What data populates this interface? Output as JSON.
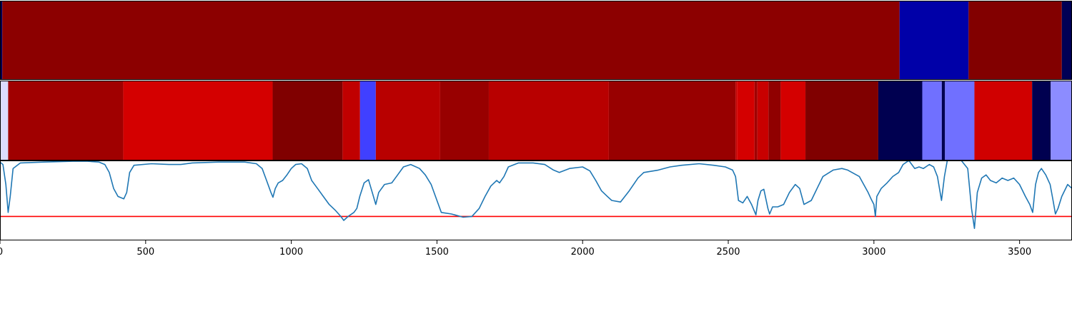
{
  "chart_data": {
    "type": "heatmap",
    "x_range": [
      0,
      3680
    ],
    "x_ticks": [
      0,
      500,
      1000,
      1500,
      2000,
      2500,
      3000,
      3500
    ],
    "x_tick_labels": [
      "0",
      "500",
      "1000",
      "1500",
      "2000",
      "2500",
      "3000",
      "3500"
    ],
    "colormap": "seismic",
    "grid": false,
    "segment_bands": [
      {
        "segments": [
          {
            "start": 0,
            "end": 8,
            "color": "#000055"
          },
          {
            "start": 8,
            "end": 3088,
            "color": "#8c0000"
          },
          {
            "start": 3088,
            "end": 3325,
            "color": "#0000a8"
          },
          {
            "start": 3325,
            "end": 3645,
            "color": "#820000"
          },
          {
            "start": 3645,
            "end": 3680,
            "color": "#000055"
          }
        ]
      },
      {
        "segments": [
          {
            "start": 0,
            "end": 28,
            "color": "#dcdcff"
          },
          {
            "start": 28,
            "end": 423,
            "color": "#a00000"
          },
          {
            "start": 423,
            "end": 936,
            "color": "#d40000"
          },
          {
            "start": 936,
            "end": 1176,
            "color": "#800000"
          },
          {
            "start": 1176,
            "end": 1236,
            "color": "#c00000"
          },
          {
            "start": 1236,
            "end": 1290,
            "color": "#4040ff"
          },
          {
            "start": 1290,
            "end": 1511,
            "color": "#b80000"
          },
          {
            "start": 1511,
            "end": 1678,
            "color": "#980000"
          },
          {
            "start": 1678,
            "end": 2090,
            "color": "#b80000"
          },
          {
            "start": 2090,
            "end": 2525,
            "color": "#980000"
          },
          {
            "start": 2525,
            "end": 2530,
            "color": "#c00000"
          },
          {
            "start": 2530,
            "end": 2590,
            "color": "#d40000"
          },
          {
            "start": 2590,
            "end": 2600,
            "color": "#a00000"
          },
          {
            "start": 2600,
            "end": 2638,
            "color": "#c80000"
          },
          {
            "start": 2638,
            "end": 2680,
            "color": "#900000"
          },
          {
            "start": 2680,
            "end": 2765,
            "color": "#d40000"
          },
          {
            "start": 2765,
            "end": 3015,
            "color": "#800000"
          },
          {
            "start": 3015,
            "end": 3166,
            "color": "#000050"
          },
          {
            "start": 3166,
            "end": 3233,
            "color": "#7070ff"
          },
          {
            "start": 3233,
            "end": 3244,
            "color": "#000050"
          },
          {
            "start": 3244,
            "end": 3345,
            "color": "#7070ff"
          },
          {
            "start": 3345,
            "end": 3543,
            "color": "#d00000"
          },
          {
            "start": 3543,
            "end": 3607,
            "color": "#000050"
          },
          {
            "start": 3607,
            "end": 3680,
            "color": "#8c8cff"
          }
        ]
      }
    ],
    "line": {
      "color": "#1f77b4",
      "ylim": [
        0,
        1
      ],
      "threshold": {
        "value": 0.3,
        "color": "#ff0000"
      },
      "points": [
        [
          0,
          0.98
        ],
        [
          10,
          0.95
        ],
        [
          20,
          0.7
        ],
        [
          28,
          0.35
        ],
        [
          35,
          0.55
        ],
        [
          45,
          0.9
        ],
        [
          70,
          0.97
        ],
        [
          150,
          0.98
        ],
        [
          250,
          0.99
        ],
        [
          300,
          0.99
        ],
        [
          340,
          0.98
        ],
        [
          360,
          0.95
        ],
        [
          375,
          0.85
        ],
        [
          390,
          0.65
        ],
        [
          405,
          0.55
        ],
        [
          425,
          0.52
        ],
        [
          435,
          0.6
        ],
        [
          445,
          0.85
        ],
        [
          460,
          0.94
        ],
        [
          520,
          0.96
        ],
        [
          580,
          0.95
        ],
        [
          620,
          0.95
        ],
        [
          660,
          0.97
        ],
        [
          750,
          0.98
        ],
        [
          840,
          0.98
        ],
        [
          880,
          0.96
        ],
        [
          900,
          0.9
        ],
        [
          915,
          0.75
        ],
        [
          930,
          0.6
        ],
        [
          937,
          0.54
        ],
        [
          945,
          0.65
        ],
        [
          955,
          0.72
        ],
        [
          970,
          0.75
        ],
        [
          985,
          0.82
        ],
        [
          1000,
          0.9
        ],
        [
          1015,
          0.95
        ],
        [
          1035,
          0.96
        ],
        [
          1055,
          0.9
        ],
        [
          1070,
          0.75
        ],
        [
          1090,
          0.65
        ],
        [
          1110,
          0.55
        ],
        [
          1130,
          0.45
        ],
        [
          1150,
          0.38
        ],
        [
          1170,
          0.3
        ],
        [
          1180,
          0.25
        ],
        [
          1195,
          0.3
        ],
        [
          1215,
          0.35
        ],
        [
          1225,
          0.4
        ],
        [
          1235,
          0.55
        ],
        [
          1250,
          0.72
        ],
        [
          1265,
          0.76
        ],
        [
          1278,
          0.6
        ],
        [
          1290,
          0.45
        ],
        [
          1300,
          0.6
        ],
        [
          1320,
          0.7
        ],
        [
          1345,
          0.72
        ],
        [
          1365,
          0.82
        ],
        [
          1385,
          0.92
        ],
        [
          1410,
          0.95
        ],
        [
          1440,
          0.9
        ],
        [
          1460,
          0.82
        ],
        [
          1480,
          0.7
        ],
        [
          1500,
          0.5
        ],
        [
          1515,
          0.35
        ],
        [
          1550,
          0.33
        ],
        [
          1590,
          0.29
        ],
        [
          1620,
          0.3
        ],
        [
          1645,
          0.4
        ],
        [
          1665,
          0.55
        ],
        [
          1685,
          0.68
        ],
        [
          1705,
          0.75
        ],
        [
          1715,
          0.72
        ],
        [
          1730,
          0.8
        ],
        [
          1745,
          0.92
        ],
        [
          1780,
          0.97
        ],
        [
          1830,
          0.97
        ],
        [
          1870,
          0.95
        ],
        [
          1900,
          0.88
        ],
        [
          1920,
          0.85
        ],
        [
          1955,
          0.9
        ],
        [
          2000,
          0.92
        ],
        [
          2025,
          0.87
        ],
        [
          2045,
          0.75
        ],
        [
          2065,
          0.62
        ],
        [
          2085,
          0.55
        ],
        [
          2100,
          0.5
        ],
        [
          2130,
          0.48
        ],
        [
          2160,
          0.62
        ],
        [
          2190,
          0.78
        ],
        [
          2210,
          0.85
        ],
        [
          2260,
          0.88
        ],
        [
          2300,
          0.92
        ],
        [
          2340,
          0.94
        ],
        [
          2400,
          0.96
        ],
        [
          2450,
          0.94
        ],
        [
          2490,
          0.92
        ],
        [
          2515,
          0.88
        ],
        [
          2525,
          0.8
        ],
        [
          2535,
          0.5
        ],
        [
          2550,
          0.47
        ],
        [
          2565,
          0.55
        ],
        [
          2580,
          0.45
        ],
        [
          2595,
          0.32
        ],
        [
          2602,
          0.5
        ],
        [
          2612,
          0.62
        ],
        [
          2622,
          0.64
        ],
        [
          2636,
          0.4
        ],
        [
          2642,
          0.33
        ],
        [
          2652,
          0.42
        ],
        [
          2670,
          0.42
        ],
        [
          2690,
          0.45
        ],
        [
          2710,
          0.6
        ],
        [
          2730,
          0.7
        ],
        [
          2745,
          0.65
        ],
        [
          2760,
          0.45
        ],
        [
          2785,
          0.5
        ],
        [
          2805,
          0.65
        ],
        [
          2825,
          0.8
        ],
        [
          2860,
          0.88
        ],
        [
          2890,
          0.9
        ],
        [
          2910,
          0.88
        ],
        [
          2950,
          0.8
        ],
        [
          2980,
          0.6
        ],
        [
          2990,
          0.52
        ],
        [
          3000,
          0.45
        ],
        [
          3005,
          0.3
        ],
        [
          3010,
          0.55
        ],
        [
          3025,
          0.65
        ],
        [
          3045,
          0.72
        ],
        [
          3065,
          0.8
        ],
        [
          3085,
          0.85
        ],
        [
          3100,
          0.95
        ],
        [
          3120,
          1.0
        ],
        [
          3140,
          0.9
        ],
        [
          3155,
          0.92
        ],
        [
          3170,
          0.9
        ],
        [
          3190,
          0.95
        ],
        [
          3205,
          0.92
        ],
        [
          3218,
          0.8
        ],
        [
          3232,
          0.5
        ],
        [
          3242,
          0.8
        ],
        [
          3252,
          1.0
        ],
        [
          3300,
          1.0
        ],
        [
          3322,
          0.9
        ],
        [
          3335,
          0.4
        ],
        [
          3345,
          0.15
        ],
        [
          3355,
          0.6
        ],
        [
          3370,
          0.78
        ],
        [
          3385,
          0.82
        ],
        [
          3400,
          0.75
        ],
        [
          3420,
          0.72
        ],
        [
          3440,
          0.78
        ],
        [
          3460,
          0.75
        ],
        [
          3480,
          0.78
        ],
        [
          3500,
          0.7
        ],
        [
          3520,
          0.55
        ],
        [
          3535,
          0.45
        ],
        [
          3545,
          0.35
        ],
        [
          3555,
          0.7
        ],
        [
          3565,
          0.85
        ],
        [
          3575,
          0.9
        ],
        [
          3590,
          0.82
        ],
        [
          3605,
          0.7
        ],
        [
          3615,
          0.5
        ],
        [
          3623,
          0.33
        ],
        [
          3632,
          0.4
        ],
        [
          3645,
          0.55
        ],
        [
          3665,
          0.7
        ],
        [
          3680,
          0.65
        ]
      ]
    }
  }
}
